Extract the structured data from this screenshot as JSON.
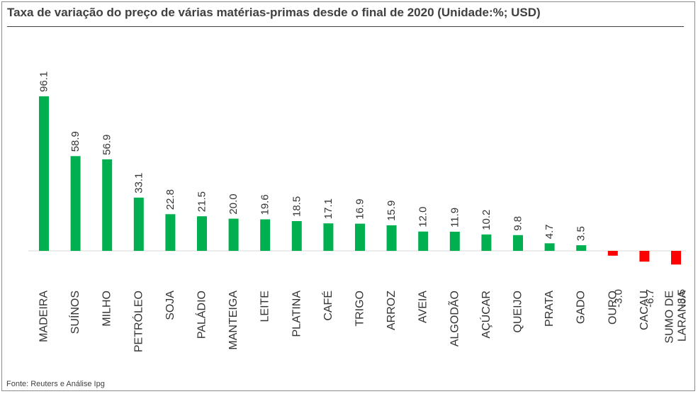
{
  "title": "Taxa de variação do preço de várias matérias-primas desde o final de 2020 (Unidade:%;  USD)",
  "source": "Fonte: Reuters e Análise Ipg",
  "colors": {
    "positive": "#00b050",
    "negative": "#ff0000",
    "axis": "#d9d9d9"
  },
  "chart_data": {
    "type": "bar",
    "title": "Taxa de variação do preço de várias matérias-primas desde o final de 2020 (Unidade:%;  USD)",
    "xlabel": "",
    "ylabel": "",
    "grid": false,
    "legend": "none",
    "categories": [
      "MADEIRA",
      "SUÍNOS",
      "MILHO",
      "PETRÓLEO",
      "SOJA",
      "PALÁDIO",
      "MANTEIGA",
      "LEITE",
      "PLATINA",
      "CAFÉ",
      "TRIGO",
      "ARROZ",
      "AVEIA",
      "ALGODÃO",
      "AÇÚCAR",
      "QUEIJO",
      "PRATA",
      "GADO",
      "OURO",
      "CACAU",
      "SUMO DE LARANJA"
    ],
    "values": [
      96.1,
      58.9,
      56.9,
      33.1,
      22.8,
      21.5,
      20.0,
      19.6,
      18.5,
      17.1,
      16.9,
      15.9,
      12.0,
      11.9,
      10.2,
      9.8,
      4.7,
      3.5,
      -3.0,
      -6.7,
      -8.5
    ],
    "value_labels": [
      "96.1",
      "58.9",
      "56.9",
      "33.1",
      "22.8",
      "21.5",
      "20.0",
      "19.6",
      "18.5",
      "17.1",
      "16.9",
      "15.9",
      "12.0",
      "11.9",
      "10.2",
      "9.8",
      "4.7",
      "3.5",
      "-3.0",
      "-6.7",
      "-8.5"
    ],
    "ylim": [
      -10,
      100
    ]
  }
}
